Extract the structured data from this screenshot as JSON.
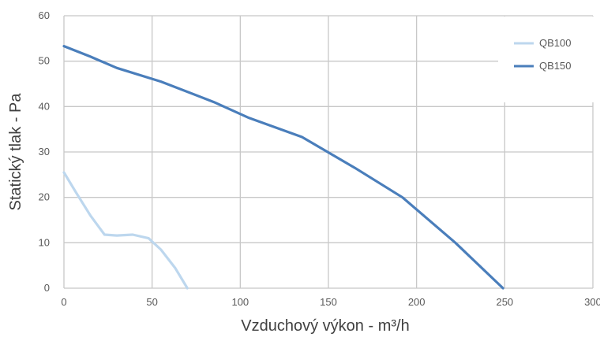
{
  "chart_data": {
    "type": "line",
    "xlabel": "Vzduchový výkon - m³/h",
    "ylabel": "Statický tlak - Pa",
    "xlim": [
      0,
      300
    ],
    "ylim": [
      0,
      60
    ],
    "x_ticks": [
      0,
      50,
      100,
      150,
      200,
      250,
      300
    ],
    "y_ticks": [
      0,
      10,
      20,
      30,
      40,
      50,
      60
    ],
    "grid": true,
    "legend_position": "top-right",
    "series": [
      {
        "name": "QB100",
        "color": "#bdd7ee",
        "points": [
          [
            0,
            25.5
          ],
          [
            7,
            21
          ],
          [
            15,
            16
          ],
          [
            23,
            11.8
          ],
          [
            30,
            11.6
          ],
          [
            39,
            11.8
          ],
          [
            48,
            11
          ],
          [
            55,
            8.5
          ],
          [
            63,
            4.5
          ],
          [
            70,
            0
          ]
        ]
      },
      {
        "name": "QB150",
        "color": "#4a7ebb",
        "points": [
          [
            0,
            53.3
          ],
          [
            15,
            51
          ],
          [
            30,
            48.5
          ],
          [
            55,
            45.5
          ],
          [
            85,
            41
          ],
          [
            105,
            37.5
          ],
          [
            135,
            33.3
          ],
          [
            165,
            26.5
          ],
          [
            192,
            20
          ],
          [
            222,
            10
          ],
          [
            249,
            0
          ]
        ]
      }
    ]
  }
}
